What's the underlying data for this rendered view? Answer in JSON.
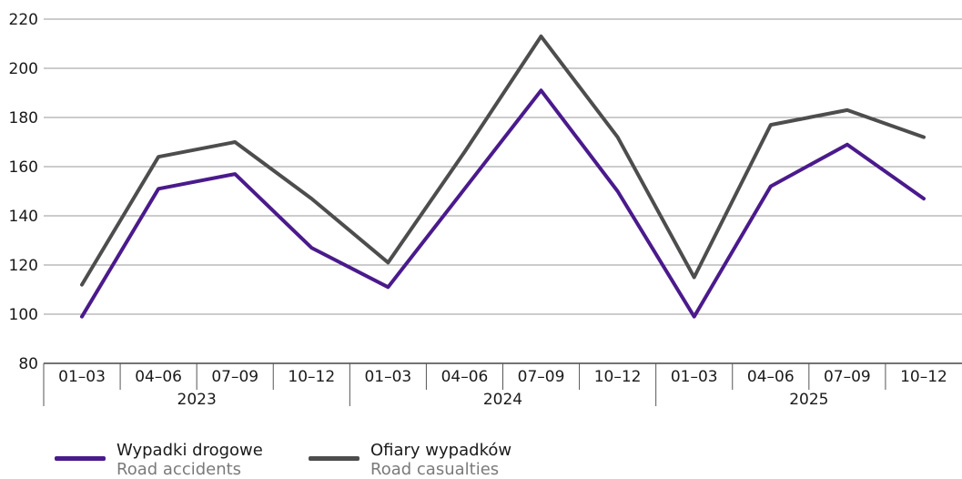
{
  "chart_data": {
    "type": "line",
    "title": "",
    "xlabel": "",
    "ylabel": "",
    "ylim": [
      80,
      220
    ],
    "yticks": [
      80,
      100,
      120,
      140,
      160,
      180,
      200,
      220
    ],
    "grid": true,
    "categories": [
      "01–03",
      "04–06",
      "07–09",
      "10–12",
      "01–03",
      "04–06",
      "07–09",
      "10–12",
      "01–03",
      "04–06",
      "07–09",
      "10–12"
    ],
    "groups": [
      {
        "label": "2023",
        "span": 4
      },
      {
        "label": "2024",
        "span": 4
      },
      {
        "label": "2025",
        "span": 4
      }
    ],
    "series": [
      {
        "name": "Wypadki drogowe / Road accidents",
        "color": "#4a1a8c",
        "values": [
          99,
          151,
          157,
          127,
          111,
          151,
          191,
          150,
          99,
          152,
          169,
          147
        ]
      },
      {
        "name": "Ofiary wypadków / Road casualties",
        "color": "#4d4d4d",
        "values": [
          112,
          164,
          170,
          147,
          121,
          166,
          213,
          172,
          115,
          177,
          183,
          172
        ]
      }
    ],
    "legend_position": "bottom-left"
  },
  "legend": {
    "items": [
      {
        "label_pl": "Wypadki drogowe",
        "label_en": "Road accidents",
        "color": "#4a1a8c"
      },
      {
        "label_pl": "Ofiary wypadków",
        "label_en": "Road casualties",
        "color": "#4d4d4d"
      }
    ]
  }
}
